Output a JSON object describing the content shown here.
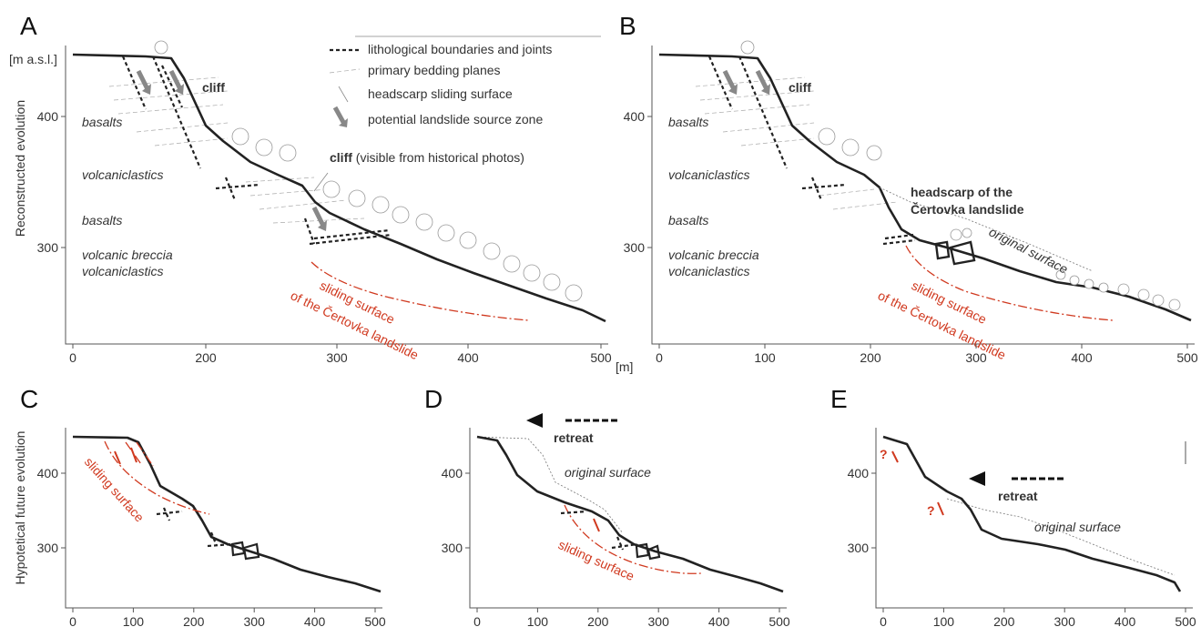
{
  "y_unit": "[m a.s.l.]",
  "x_unit": "[m]",
  "row_titles": [
    "Reconstructed evolution",
    "Hypotetical future evolution"
  ],
  "legend": [
    "lithological boundaries and joints",
    "primary bedding planes",
    "headscarp sliding surface",
    "potential landslide source zone"
  ],
  "panels": [
    {
      "label": "A",
      "x_ticks": [
        0,
        200,
        300,
        400,
        500
      ],
      "y_ticks": [
        400,
        300
      ],
      "texts": [
        "cliff",
        "basalts",
        "volcaniclastics",
        "basalts",
        "volcanic breccia",
        "volcaniclastics",
        "cliff",
        "(visible from historical photos)",
        "sliding surface",
        "of the Čertovka landslide"
      ]
    },
    {
      "label": "B",
      "x_ticks": [
        0,
        100,
        200,
        300,
        400,
        500
      ],
      "y_ticks": [
        400,
        300
      ],
      "texts": [
        "cliff",
        "basalts",
        "volcaniclastics",
        "basalts",
        "volcanic breccia",
        "volcaniclastics",
        "headscarp of the",
        "Čertovka landslide",
        "original surface",
        "sliding surface",
        "of the Čertovka landslide"
      ]
    },
    {
      "label": "C",
      "x_ticks": [
        0,
        100,
        200,
        300,
        400,
        500
      ],
      "y_ticks": [
        400,
        300
      ],
      "texts": [
        "sliding surface"
      ]
    },
    {
      "label": "D",
      "x_ticks": [
        0,
        100,
        200,
        300,
        400,
        500
      ],
      "y_ticks": [
        400,
        300
      ],
      "texts": [
        "retreat",
        "original surface",
        "sliding surface"
      ]
    },
    {
      "label": "E",
      "x_ticks": [
        0,
        100,
        200,
        300,
        400,
        500
      ],
      "y_ticks": [
        400,
        300
      ],
      "texts": [
        "?",
        "?",
        "retreat",
        "original surface"
      ]
    }
  ]
}
